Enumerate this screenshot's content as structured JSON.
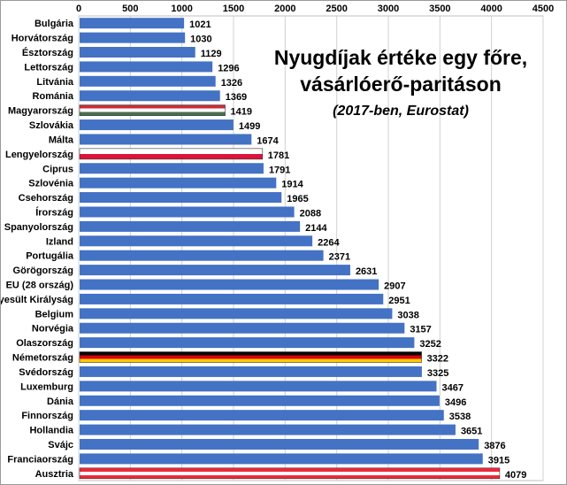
{
  "chart_data": {
    "type": "bar",
    "orientation": "horizontal",
    "title": "Nyugdíjak értéke egy főre,",
    "title_line2": "vásárlóerő-paritáson",
    "subtitle": "(2017-ben, Eurostat)",
    "xlim": [
      0,
      4500
    ],
    "xticks": [
      0,
      500,
      1000,
      1500,
      2000,
      2500,
      3000,
      3500,
      4000,
      4500
    ],
    "x_axis_position": "top",
    "grid": true,
    "categories": [
      "Bulgária",
      "Horvátország",
      "Észtország",
      "Lettország",
      "Litvánia",
      "Románia",
      "Magyarország",
      "Szlovákia",
      "Málta",
      "Lengyelország",
      "Ciprus",
      "Szlovénia",
      "Csehország",
      "Írország",
      "Spanyolország",
      "Izland",
      "Portugália",
      "Görögország",
      "EU (28 ország)",
      "Egyesült Királyság",
      "Belgium",
      "Norvégia",
      "Olaszország",
      "Németország",
      "Svédország",
      "Luxemburg",
      "Dánia",
      "Finnország",
      "Hollandia",
      "Svájc",
      "Franciaország",
      "Ausztria"
    ],
    "values": [
      1021,
      1030,
      1129,
      1296,
      1326,
      1369,
      1419,
      1499,
      1674,
      1781,
      1791,
      1914,
      1965,
      2088,
      2144,
      2264,
      2371,
      2631,
      2907,
      2951,
      3038,
      3157,
      3252,
      3322,
      3325,
      3467,
      3496,
      3538,
      3651,
      3876,
      3915,
      4079
    ],
    "bar_color": "#4472c4",
    "flag_bars": {
      "Magyarország": [
        "#ce2939",
        "#ffffff",
        "#477050"
      ],
      "Lengyelország": [
        "#ffffff",
        "#dc143c"
      ],
      "Németország": [
        "#000000",
        "#dd0000",
        "#ffce00"
      ],
      "Ausztria": [
        "#ed2939",
        "#ffffff",
        "#ed2939"
      ]
    }
  }
}
